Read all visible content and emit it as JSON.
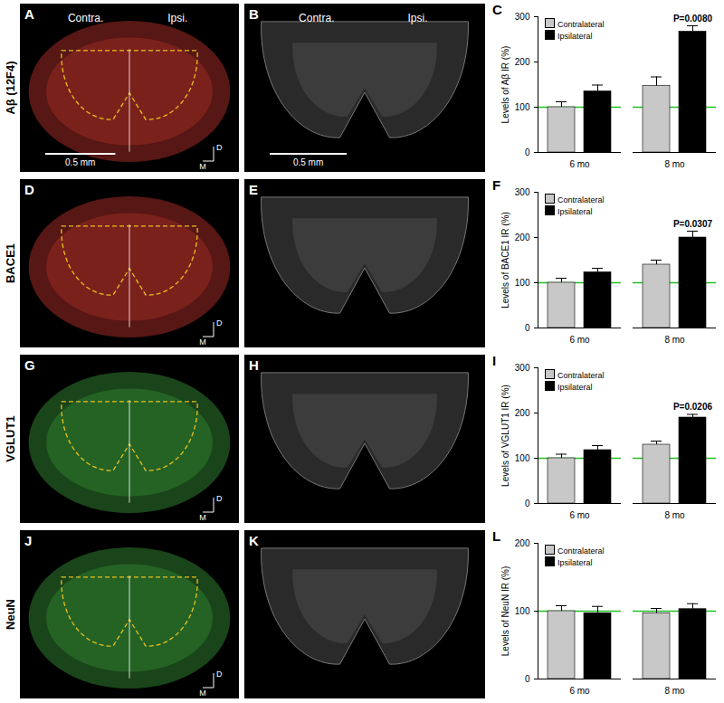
{
  "image_panels": [
    {
      "panel": "A",
      "stain": "Aβ (12F4)",
      "color": "#c0342c",
      "labels": [
        "Contra.",
        "Ipsi."
      ],
      "scale_bar": "0.5 mm",
      "orientation": [
        "D",
        "M"
      ]
    },
    {
      "panel": "B",
      "labels": [
        "Contra.",
        "Ipsi."
      ],
      "scale_bar": "0.5 mm"
    },
    {
      "panel": "D",
      "stain": "BACE1",
      "color": "#c0342c",
      "orientation": [
        "D",
        "M"
      ]
    },
    {
      "panel": "E"
    },
    {
      "panel": "G",
      "stain": "VGLUT1",
      "color": "#3a9a3a",
      "orientation": [
        "D",
        "M"
      ]
    },
    {
      "panel": "H"
    },
    {
      "panel": "J",
      "stain": "NeuN",
      "color": "#3a9a3a",
      "orientation": [
        "D",
        "M"
      ]
    },
    {
      "panel": "K"
    }
  ],
  "chart_data": [
    {
      "type": "bar",
      "panel": "C",
      "ylabel": "Levels of Aβ IR (%)",
      "categories": [
        "6 mo",
        "8 mo"
      ],
      "series": [
        {
          "name": "Contralateral",
          "color": "#c8c8c8",
          "values": [
            100,
            147
          ],
          "errors": [
            12,
            20
          ]
        },
        {
          "name": "Ipsilateral",
          "color": "#000000",
          "values": [
            135,
            267
          ],
          "errors": [
            14,
            13
          ]
        }
      ],
      "ylim": [
        0,
        300
      ],
      "yticks": [
        0,
        100,
        200,
        300
      ],
      "reference_line": 100,
      "legend": "top-left",
      "annotations": [
        {
          "category": "8 mo",
          "series": "Ipsilateral",
          "text": "P=0.0080"
        }
      ]
    },
    {
      "type": "bar",
      "panel": "F",
      "ylabel": "Levels of BACE1 IR (%)",
      "categories": [
        "6 mo",
        "8 mo"
      ],
      "series": [
        {
          "name": "Contralateral",
          "color": "#c8c8c8",
          "values": [
            100,
            140
          ],
          "errors": [
            10,
            10
          ]
        },
        {
          "name": "Ipsilateral",
          "color": "#000000",
          "values": [
            123,
            200
          ],
          "errors": [
            9,
            14
          ]
        }
      ],
      "ylim": [
        0,
        300
      ],
      "yticks": [
        0,
        100,
        200,
        300
      ],
      "reference_line": 100,
      "legend": "top-left",
      "annotations": [
        {
          "category": "8 mo",
          "series": "Ipsilateral",
          "text": "P=0.0307"
        }
      ]
    },
    {
      "type": "bar",
      "panel": "I",
      "ylabel": "Levels of VGLUT1 IR (%)",
      "categories": [
        "6 mo",
        "8 mo"
      ],
      "series": [
        {
          "name": "Contralateral",
          "color": "#c8c8c8",
          "values": [
            100,
            130
          ],
          "errors": [
            9,
            8
          ]
        },
        {
          "name": "Ipsilateral",
          "color": "#000000",
          "values": [
            118,
            190
          ],
          "errors": [
            10,
            7
          ]
        }
      ],
      "ylim": [
        0,
        300
      ],
      "yticks": [
        0,
        100,
        200,
        300
      ],
      "reference_line": 100,
      "legend": "top-left",
      "annotations": [
        {
          "category": "8 mo",
          "series": "Ipsilateral",
          "text": "P=0.0206"
        }
      ]
    },
    {
      "type": "bar",
      "panel": "L",
      "ylabel": "Levels of NeuN IR (%)",
      "categories": [
        "6 mo",
        "8 mo"
      ],
      "series": [
        {
          "name": "Contralateral",
          "color": "#c8c8c8",
          "values": [
            100,
            97
          ],
          "errors": [
            8,
            7
          ]
        },
        {
          "name": "Ipsilateral",
          "color": "#000000",
          "values": [
            97,
            103
          ],
          "errors": [
            10,
            8
          ]
        }
      ],
      "ylim": [
        0,
        200
      ],
      "yticks": [
        0,
        100,
        200
      ],
      "reference_line": 100,
      "legend": "top-left",
      "annotations": []
    }
  ]
}
